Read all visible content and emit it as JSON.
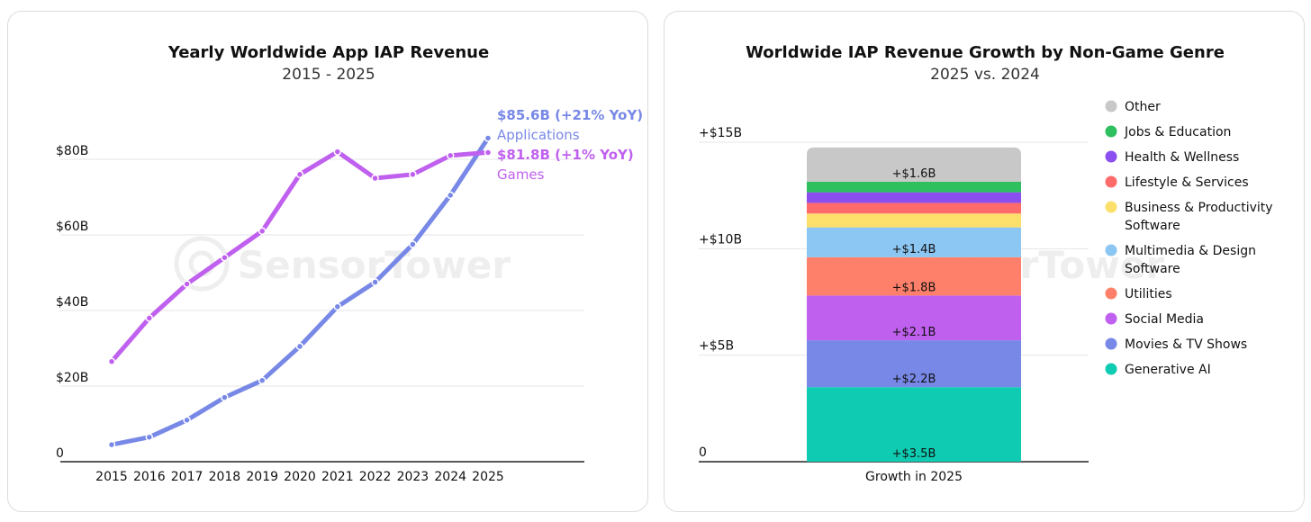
{
  "watermark": "SensorTower",
  "left": {
    "title": "Yearly Worldwide App IAP Revenue",
    "subtitle": "2015 - 2025"
  },
  "right": {
    "title": "Worldwide IAP Revenue Growth by Non-Game Genre",
    "subtitle": "2025 vs. 2024"
  },
  "chart_data": [
    {
      "type": "line",
      "title": "Yearly Worldwide App IAP Revenue",
      "subtitle": "2015 - 2025",
      "x": [
        "2015",
        "2016",
        "2017",
        "2018",
        "2019",
        "2020",
        "2021",
        "2022",
        "2023",
        "2024",
        "2025"
      ],
      "ylim": [
        0,
        80
      ],
      "yticks": [
        0,
        20,
        40,
        60,
        80
      ],
      "ytick_labels": [
        "0",
        "$20B",
        "$40B",
        "$60B",
        "$80B"
      ],
      "grid": true,
      "series": [
        {
          "name": "Applications",
          "color": "#7888e6",
          "values": [
            4.5,
            6.5,
            11,
            17,
            21.5,
            30.5,
            41,
            47.5,
            57.5,
            70.5,
            85.6
          ],
          "end_label_value": "$85.6B (+21% YoY)",
          "end_label_name": "Applications"
        },
        {
          "name": "Games",
          "color": "#c060ef",
          "values": [
            26.5,
            38,
            47,
            54,
            61,
            76,
            82,
            75,
            76,
            81,
            81.8
          ],
          "end_label_value": "$81.8B (+1% YoY)",
          "end_label_name": "Games"
        }
      ]
    },
    {
      "type": "bar",
      "stacked": true,
      "title": "Worldwide IAP Revenue Growth by Non-Game Genre",
      "subtitle": "2025 vs. 2024",
      "categories": [
        "Growth in 2025"
      ],
      "ylim": [
        0,
        15
      ],
      "yticks": [
        0,
        5,
        10,
        15
      ],
      "ytick_labels": [
        "0",
        "+$5B",
        "+$10B",
        "+$15B"
      ],
      "grid": true,
      "legend_position": "right",
      "series": [
        {
          "name": "Generative AI",
          "value": 3.5,
          "label": "+$3.5B",
          "color": "#0ecbb2"
        },
        {
          "name": "Movies & TV Shows",
          "value": 2.2,
          "label": "+$2.2B",
          "color": "#7888e6"
        },
        {
          "name": "Social Media",
          "value": 2.1,
          "label": "+$2.1B",
          "color": "#c060ef"
        },
        {
          "name": "Utilities",
          "value": 1.8,
          "label": "+$1.8B",
          "color": "#ff806a"
        },
        {
          "name": "Multimedia & Design Software",
          "value": 1.4,
          "label": "+$1.4B",
          "color": "#8cc6f2"
        },
        {
          "name": "Business & Productivity Software",
          "value": 0.65,
          "label": "",
          "color": "#fde06c"
        },
        {
          "name": "Lifestyle & Services",
          "value": 0.5,
          "label": "",
          "color": "#ff6b6b"
        },
        {
          "name": "Health & Wellness",
          "value": 0.5,
          "label": "",
          "color": "#8b4ff0"
        },
        {
          "name": "Jobs & Education",
          "value": 0.5,
          "label": "",
          "color": "#2ebf5f"
        },
        {
          "name": "Other",
          "value": 1.6,
          "label": "+$1.6B",
          "color": "#c8c8c8"
        }
      ]
    }
  ]
}
